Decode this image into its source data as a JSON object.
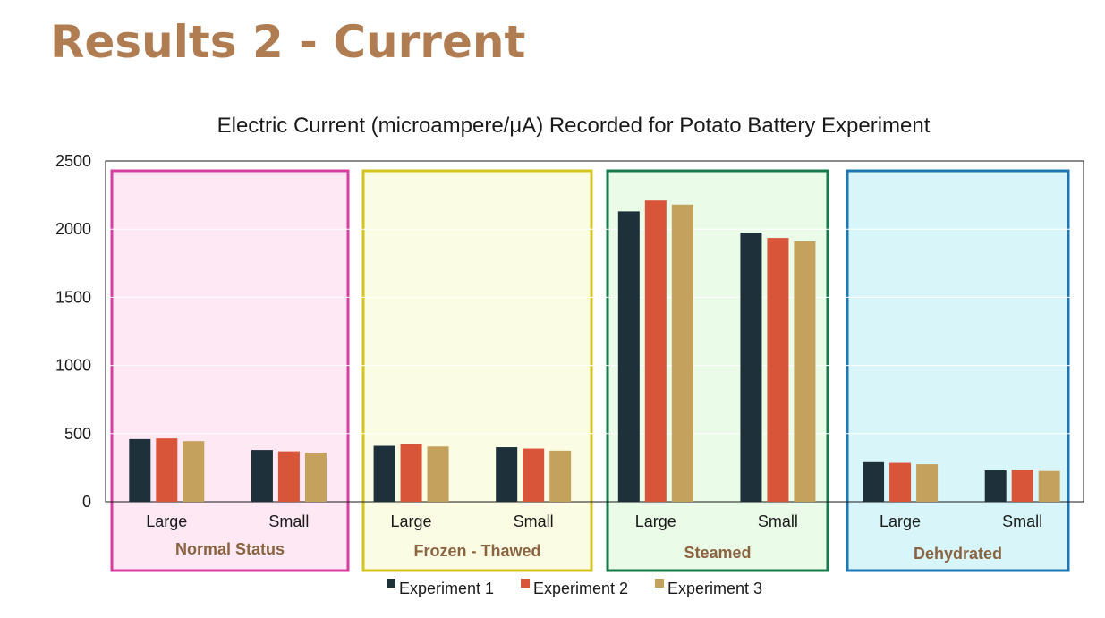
{
  "slide": {
    "title": "Results 2 - Current"
  },
  "chart_data": {
    "type": "bar",
    "title": "Electric Current (microampere/μA) Recorded for Potato Battery Experiment",
    "xlabel": "",
    "ylabel": "",
    "ylim": [
      0,
      2500
    ],
    "yticks": [
      0,
      500,
      1000,
      1500,
      2000,
      2500
    ],
    "grid": true,
    "legend_position": "bottom",
    "groups": [
      {
        "label": "Normal Status",
        "fill": "#fde8f4",
        "border": "#d63fa0"
      },
      {
        "label": "Frozen - Thawed",
        "fill": "#fafce3",
        "border": "#d4c41f"
      },
      {
        "label": "Steamed",
        "fill": "#eafbe8",
        "border": "#177a4a"
      },
      {
        "label": "Dehydrated",
        "fill": "#d8f6fa",
        "border": "#1d77b5"
      }
    ],
    "categories": [
      "Large",
      "Small",
      "Large",
      "Small",
      "Large",
      "Small",
      "Large",
      "Small"
    ],
    "series": [
      {
        "name": "Experiment 1",
        "color": "#1e313b",
        "values": [
          460,
          380,
          410,
          400,
          2130,
          1975,
          290,
          230
        ]
      },
      {
        "name": "Experiment 2",
        "color": "#d9553a",
        "values": [
          465,
          370,
          425,
          390,
          2210,
          1935,
          285,
          235
        ]
      },
      {
        "name": "Experiment 3",
        "color": "#c4a15c",
        "values": [
          445,
          360,
          405,
          375,
          2180,
          1910,
          275,
          225
        ]
      }
    ]
  }
}
